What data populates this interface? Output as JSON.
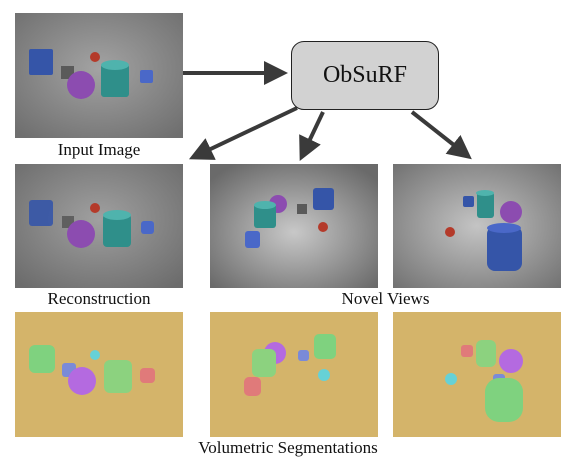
{
  "model": {
    "name": "ObSuRF"
  },
  "labels": {
    "input": "Input Image",
    "reconstruction": "Reconstruction",
    "novel_views": "Novel Views",
    "segmentations": "Volumetric Segmentations"
  },
  "colors": {
    "box_fill": "#d2d2d2",
    "arrow": "#3a3a3a",
    "segmentation_background": "#d4b46a",
    "scene_background": "#9a9a9a"
  }
}
